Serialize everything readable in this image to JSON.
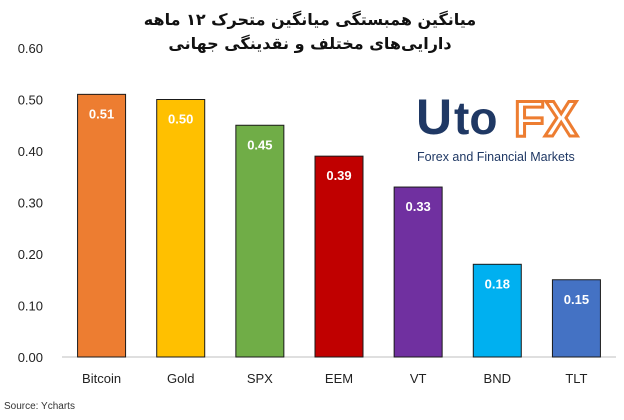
{
  "chart_data": {
    "type": "bar",
    "title_line1": "میانگین همبستگی میانگین متحرک ۱۲ ماهه",
    "title_line2": "دارایی‌های مختلف و نقدینگی جهانی",
    "categories": [
      "Bitcoin",
      "Gold",
      "SPX",
      "EEM",
      "VT",
      "BND",
      "TLT"
    ],
    "values": [
      0.51,
      0.5,
      0.45,
      0.39,
      0.33,
      0.18,
      0.15
    ],
    "value_labels": [
      "0.51",
      "0.50",
      "0.45",
      "0.39",
      "0.33",
      "0.18",
      "0.15"
    ],
    "colors": [
      "#ED7D31",
      "#FFC000",
      "#70AD47",
      "#C00000",
      "#7030A0",
      "#00B0F0",
      "#4472C4"
    ],
    "yticks": [
      "0.00",
      "0.10",
      "0.20",
      "0.30",
      "0.40",
      "0.50",
      "0.60"
    ],
    "ylim": [
      0,
      0.6
    ],
    "grid": false
  },
  "logo": {
    "brand_u": "U",
    "brand_to": "to",
    "brand_fx": "FX",
    "tagline": "Forex and Financial Markets",
    "colors": {
      "navy": "#1F3864",
      "orange": "#ED7D31"
    }
  },
  "source": "Source: Ycharts"
}
